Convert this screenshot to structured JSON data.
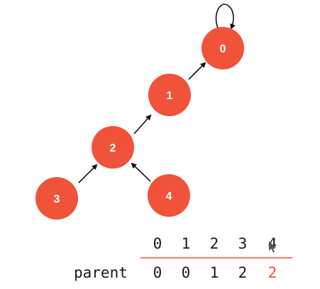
{
  "accent_color": "#f0533a",
  "edge_color": "#111111",
  "nodes": [
    {
      "id": "0",
      "label": "0",
      "parent": "0"
    },
    {
      "id": "1",
      "label": "1",
      "parent": "0"
    },
    {
      "id": "2",
      "label": "2",
      "parent": "1"
    },
    {
      "id": "3",
      "label": "3",
      "parent": "2"
    },
    {
      "id": "4",
      "label": "4",
      "parent": "2"
    }
  ],
  "array": {
    "row_label": "parent",
    "indices": [
      "0",
      "1",
      "2",
      "3",
      "4"
    ],
    "values": [
      "0",
      "0",
      "1",
      "2",
      "2"
    ],
    "highlight_index": 4,
    "highlight_color": "#e8553d"
  }
}
